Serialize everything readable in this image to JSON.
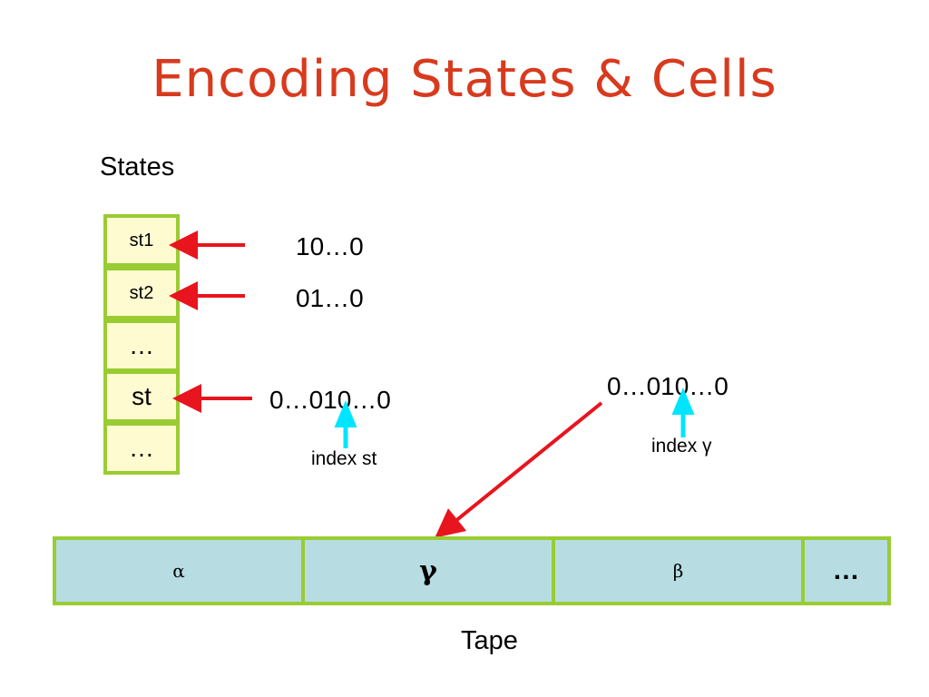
{
  "title": "Encoding States & Cells",
  "states_label": "States",
  "states": [
    {
      "label": "st1",
      "code": "10…0"
    },
    {
      "label": "st2",
      "code": "01…0"
    },
    {
      "label": "…"
    },
    {
      "label": "st",
      "code": "0…010…0",
      "index_label": "index st"
    },
    {
      "label": "…"
    }
  ],
  "cell_code": {
    "code": "0…010…0",
    "index_label": "index γ"
  },
  "tape": {
    "label": "Tape",
    "cells": [
      "α",
      "γ",
      "β",
      "…"
    ]
  },
  "colors": {
    "title": "#d83a1e",
    "cell_border": "#99cc33",
    "state_fill": "#fffbd1",
    "tape_fill": "#b7dde3",
    "arrow_red": "#e8141e",
    "arrow_cyan": "#00e5ff"
  }
}
